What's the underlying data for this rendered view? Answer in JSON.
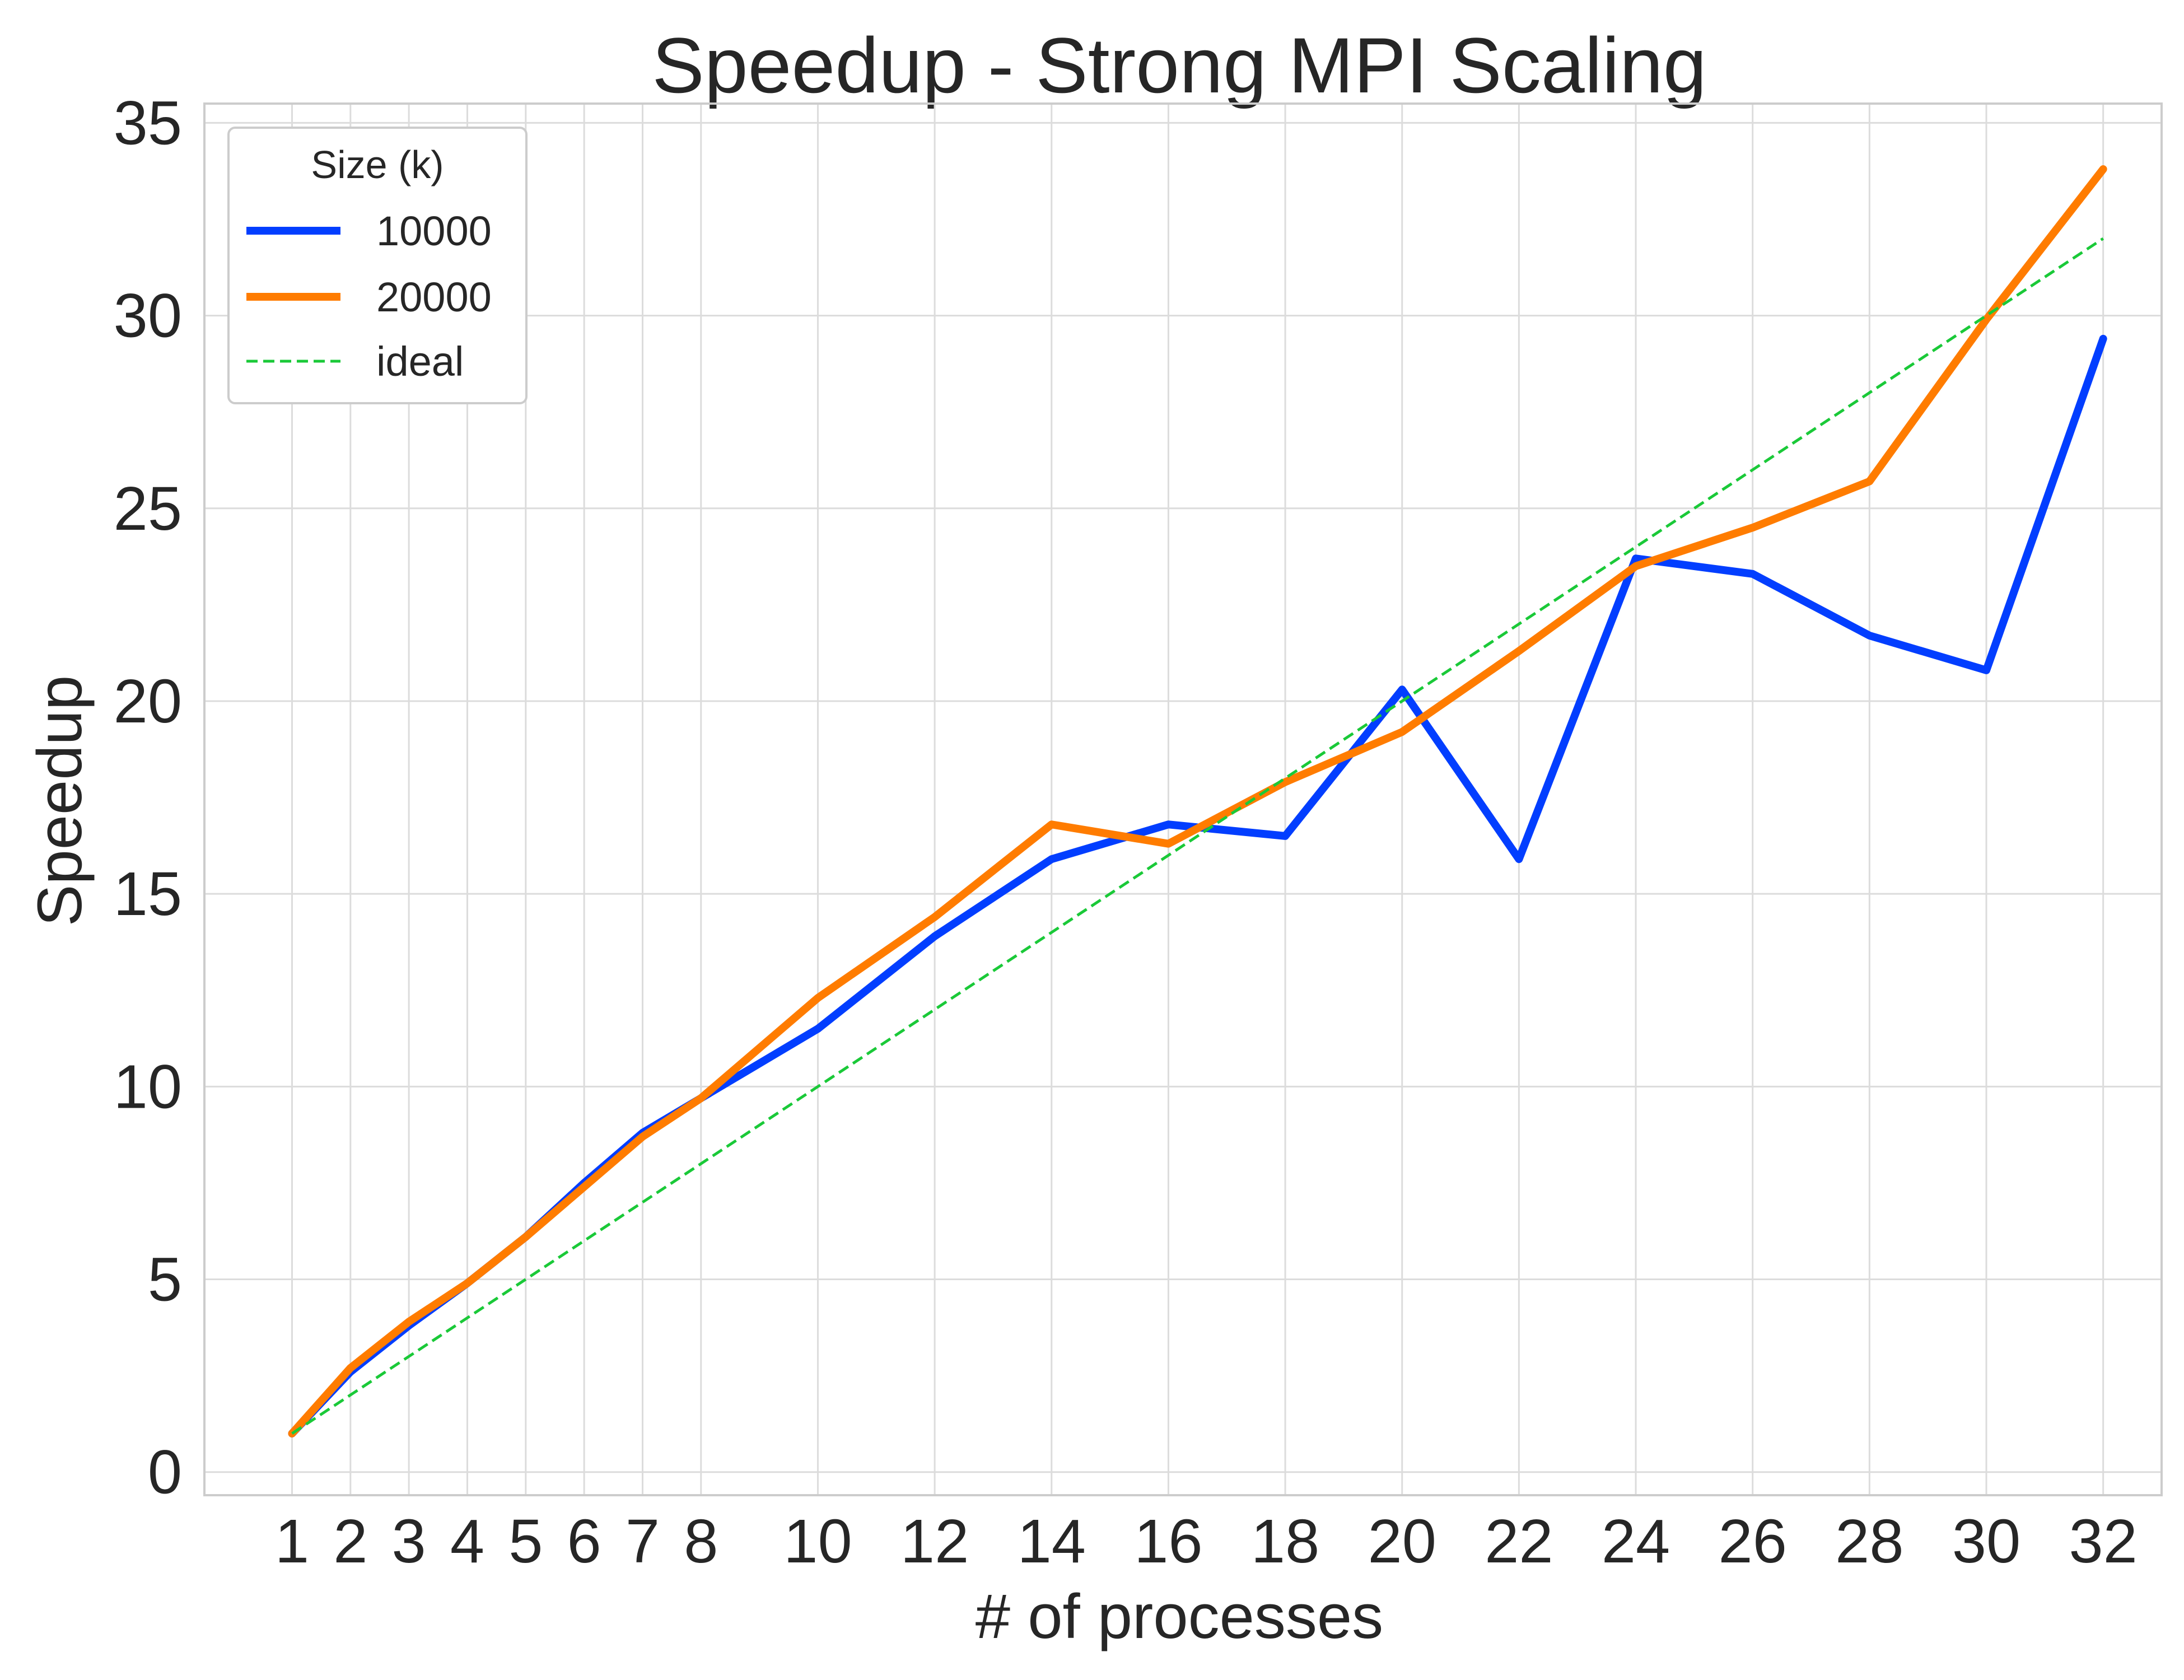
{
  "chart_data": {
    "type": "line",
    "title": "Speedup - Strong MPI Scaling",
    "xlabel": "# of processes",
    "ylabel": "Speedup",
    "x_ticks": [
      1,
      2,
      3,
      4,
      5,
      6,
      7,
      8,
      10,
      12,
      14,
      16,
      18,
      20,
      22,
      24,
      26,
      28,
      30,
      32
    ],
    "y_ticks": [
      0,
      5,
      10,
      15,
      20,
      25,
      30,
      35
    ],
    "xlim": [
      -0.5,
      33
    ],
    "ylim": [
      -0.6,
      35.5
    ],
    "grid": true,
    "legend": {
      "title": "Size (k)",
      "placement": "upper-left"
    },
    "series": [
      {
        "name": "10000",
        "color": "#023eff",
        "style": "solid",
        "x": [
          1,
          2,
          3,
          4,
          5,
          6,
          7,
          8,
          10,
          12,
          14,
          16,
          18,
          20,
          22,
          24,
          26,
          28,
          30,
          32
        ],
        "y": [
          1.0,
          2.6,
          3.8,
          4.9,
          6.1,
          7.5,
          8.8,
          9.7,
          11.5,
          13.9,
          15.9,
          16.8,
          16.5,
          20.3,
          15.9,
          23.7,
          23.3,
          21.7,
          20.8,
          29.4
        ]
      },
      {
        "name": "20000",
        "color": "#ff7c00",
        "style": "solid",
        "x": [
          1,
          2,
          3,
          4,
          5,
          6,
          7,
          8,
          10,
          12,
          14,
          16,
          18,
          20,
          22,
          24,
          26,
          28,
          30,
          32
        ],
        "y": [
          1.0,
          2.7,
          3.9,
          4.9,
          6.1,
          7.4,
          8.7,
          9.7,
          12.3,
          14.4,
          16.8,
          16.3,
          17.9,
          19.2,
          21.3,
          23.5,
          24.5,
          25.7,
          29.9,
          33.8
        ]
      },
      {
        "name": "ideal",
        "color": "#1ac938",
        "style": "dashed",
        "x": [
          1,
          32
        ],
        "y": [
          1,
          32
        ]
      }
    ]
  }
}
